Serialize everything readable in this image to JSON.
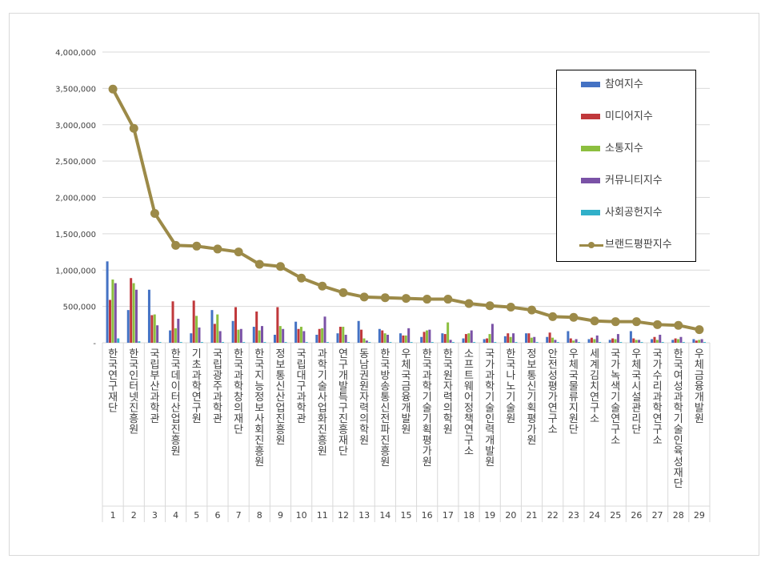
{
  "chart_data": {
    "type": "bar",
    "title": "",
    "xlabel": "",
    "ylabel": "",
    "ylim": [
      0,
      4000000
    ],
    "yticks": [
      "-",
      "500,000",
      "1,000,000",
      "1,500,000",
      "2,000,000",
      "2,500,000",
      "3,000,000",
      "3,500,000",
      "4,000,000"
    ],
    "grid": true,
    "legend_position": "top-right",
    "ranks": [
      "1",
      "2",
      "3",
      "4",
      "5",
      "6",
      "7",
      "8",
      "9",
      "10",
      "11",
      "12",
      "13",
      "14",
      "15",
      "16",
      "17",
      "18",
      "19",
      "20",
      "21",
      "22",
      "23",
      "24",
      "25",
      "26",
      "27",
      "28",
      "29"
    ],
    "categories": [
      "한국연구재단",
      "한국인터넷진흥원",
      "국립부산과학관",
      "한국데이터산업진흥원",
      "기초과학연구원",
      "국립광주과학관",
      "한국과학창의재단",
      "한국지능정보사회진흥원",
      "정보통신산업진흥원",
      "국립대구과학관",
      "과학기술사업화진흥원",
      "연구개발특구진흥재단",
      "동남권원자력의학원",
      "한국방송통신전파진흥원",
      "우체국금융개발원",
      "한국과학기술기획평가원",
      "한국원자력의학원",
      "소프트웨어정책연구소",
      "국가과학기술인력개발원",
      "한국나노기술원",
      "정보통신기획평가원",
      "안전성평가연구소",
      "우체국물류지원단",
      "세계김치연구소",
      "국가녹색기술연구소",
      "우체국시설관리단",
      "국가수리과학연구소",
      "한국여성과학기술인육성재단",
      "우체금융개발원"
    ],
    "series": [
      {
        "name": "참여지수",
        "kind": "bar",
        "color": "#4472C4",
        "values": [
          1120000,
          450000,
          730000,
          170000,
          130000,
          450000,
          300000,
          220000,
          110000,
          290000,
          110000,
          130000,
          300000,
          190000,
          130000,
          80000,
          130000,
          60000,
          50000,
          90000,
          130000,
          80000,
          160000,
          50000,
          40000,
          160000,
          50000,
          40000,
          50000
        ]
      },
      {
        "name": "미디어지수",
        "kind": "bar",
        "color": "#C0383B",
        "values": [
          590000,
          890000,
          380000,
          570000,
          580000,
          260000,
          490000,
          430000,
          490000,
          190000,
          190000,
          220000,
          180000,
          170000,
          100000,
          150000,
          120000,
          120000,
          60000,
          130000,
          130000,
          140000,
          60000,
          70000,
          60000,
          60000,
          80000,
          60000,
          30000
        ]
      },
      {
        "name": "소통지수",
        "kind": "bar",
        "color": "#8CBF3F",
        "values": [
          870000,
          820000,
          390000,
          200000,
          370000,
          390000,
          180000,
          170000,
          230000,
          220000,
          200000,
          220000,
          60000,
          130000,
          100000,
          170000,
          280000,
          130000,
          120000,
          80000,
          70000,
          70000,
          30000,
          50000,
          50000,
          40000,
          40000,
          50000,
          40000
        ]
      },
      {
        "name": "커뮤니티지수",
        "kind": "bar",
        "color": "#7A52A6",
        "values": [
          820000,
          730000,
          240000,
          330000,
          210000,
          160000,
          190000,
          230000,
          190000,
          160000,
          360000,
          110000,
          30000,
          110000,
          200000,
          180000,
          40000,
          170000,
          260000,
          130000,
          80000,
          40000,
          50000,
          100000,
          120000,
          40000,
          110000,
          80000,
          50000
        ]
      },
      {
        "name": "사회공헌지수",
        "kind": "bar",
        "color": "#31B0C9",
        "values": [
          60000,
          20000,
          10000,
          10000,
          10000,
          10000,
          10000,
          10000,
          10000,
          10000,
          10000,
          10000,
          10000,
          10000,
          10000,
          10000,
          10000,
          10000,
          10000,
          10000,
          10000,
          10000,
          10000,
          10000,
          10000,
          10000,
          10000,
          10000,
          10000
        ]
      },
      {
        "name": "브랜드평판지수",
        "kind": "line",
        "color": "#9C8A48",
        "values": [
          3490000,
          2950000,
          1780000,
          1340000,
          1330000,
          1290000,
          1250000,
          1080000,
          1050000,
          890000,
          780000,
          690000,
          630000,
          620000,
          610000,
          600000,
          600000,
          540000,
          510000,
          490000,
          450000,
          360000,
          350000,
          300000,
          290000,
          290000,
          250000,
          240000,
          180000
        ]
      }
    ]
  }
}
